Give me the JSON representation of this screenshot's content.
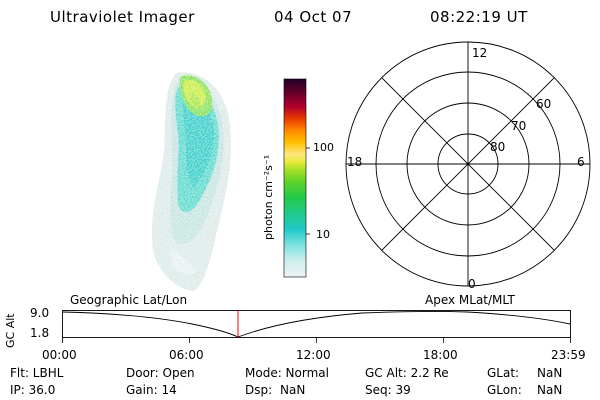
{
  "header": {
    "title": "Ultraviolet Imager",
    "date": "04 Oct 07",
    "time": "08:22:19 UT"
  },
  "colorbar": {
    "label": "photon cm⁻²s⁻¹",
    "ticks": [
      "100",
      "10"
    ]
  },
  "polar": {
    "mlt_labels": {
      "top": "12",
      "left": "18",
      "right": "6",
      "bottom": "0"
    },
    "lat_labels": [
      "60",
      "70",
      "80"
    ]
  },
  "timeline": {
    "left_caption": "Geographic Lat/Lon",
    "right_caption": "Apex MLat/MLT",
    "axis_label": "GC Alt",
    "y_max": "9.0",
    "y_min": "1.8",
    "x_ticks": [
      "00:00",
      "06:00",
      "12:00",
      "18:00",
      "23:59"
    ],
    "marker_color": "#ff0000"
  },
  "footer": {
    "flt": "Flt: LBHL",
    "ip": "IP: 36.0",
    "door": "Door: Open",
    "gain": "Gain: 14",
    "mode": "Mode: Normal",
    "dsp": "Dsp:",
    "dsp_val": "NaN",
    "gcalt": "GC Alt: 2.2 Re",
    "seq": "Seq: 39",
    "glat": "GLat:",
    "glat_val": "NaN",
    "glon": "GLon:",
    "glon_val": "NaN"
  }
}
